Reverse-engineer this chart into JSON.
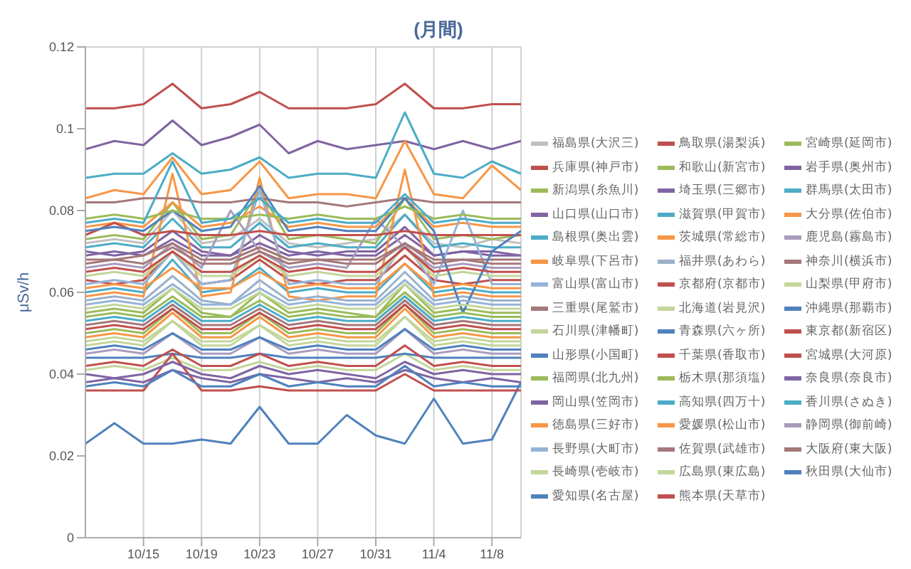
{
  "chart_data": {
    "type": "line",
    "title": "(月間)",
    "ylabel": "μSv/h",
    "x": [
      "--10-11",
      "--10-13",
      "--10-15",
      "--10-17",
      "--10-19",
      "--10-21",
      "--10-23",
      "--10-25",
      "--10-27",
      "--10-29",
      "--10-31",
      "--11-02",
      "--11-04",
      "--11-06",
      "--11-08",
      "--11-10"
    ],
    "xlim": [
      "--10-11",
      "--11-10"
    ],
    "xticks": [
      {
        "value": "--10-15",
        "label": "10/15"
      },
      {
        "value": "--10-19",
        "label": "10/19"
      },
      {
        "value": "--10-23",
        "label": "10/23"
      },
      {
        "value": "--10-27",
        "label": "10/27"
      },
      {
        "value": "--10-31",
        "label": "10/31"
      },
      {
        "value": "--11-04",
        "label": "11/4"
      },
      {
        "value": "--11-08",
        "label": "11/8"
      }
    ],
    "ylim": [
      0,
      0.12
    ],
    "yticks": [
      0,
      0.02,
      0.04,
      0.06,
      0.08,
      0.1,
      0.12
    ],
    "grid": true,
    "legend": "right",
    "series": [
      {
        "name": "福島県(大沢三)",
        "color": "#c0c0c0",
        "values": [
          0.072,
          0.073,
          0.072,
          0.08,
          0.072,
          0.073,
          0.078,
          0.072,
          0.071,
          0.072,
          0.073,
          0.079,
          0.072,
          0.071,
          0.073,
          0.072
        ]
      },
      {
        "name": "鳥取県(湯梨浜)",
        "color": "#c0504d",
        "values": [
          0.063,
          0.062,
          0.063,
          0.07,
          0.062,
          0.063,
          0.068,
          0.063,
          0.062,
          0.063,
          0.063,
          0.069,
          0.063,
          0.062,
          0.063,
          0.063
        ]
      },
      {
        "name": "宮崎県(延岡市)",
        "color": "#9bbb59",
        "values": [
          0.055,
          0.056,
          0.055,
          0.061,
          0.055,
          0.054,
          0.06,
          0.055,
          0.056,
          0.055,
          0.054,
          0.062,
          0.055,
          0.056,
          0.055,
          0.055
        ]
      },
      {
        "name": "兵庫県(神戸市)",
        "color": "#c0504d",
        "values": [
          0.105,
          0.105,
          0.106,
          0.111,
          0.105,
          0.106,
          0.109,
          0.105,
          0.105,
          0.105,
          0.106,
          0.111,
          0.105,
          0.105,
          0.106,
          0.106
        ]
      },
      {
        "name": "和歌山(新宮市)",
        "color": "#9bbb59",
        "values": [
          0.05,
          0.051,
          0.05,
          0.056,
          0.05,
          0.05,
          0.055,
          0.05,
          0.051,
          0.05,
          0.05,
          0.057,
          0.05,
          0.051,
          0.05,
          0.05
        ]
      },
      {
        "name": "岩手県(奥州市)",
        "color": "#8064a2",
        "values": [
          0.095,
          0.097,
          0.096,
          0.102,
          0.096,
          0.098,
          0.101,
          0.094,
          0.097,
          0.095,
          0.096,
          0.097,
          0.095,
          0.097,
          0.095,
          0.097
        ]
      },
      {
        "name": "新潟県(糸魚川)",
        "color": "#9bbb59",
        "values": [
          0.073,
          0.074,
          0.073,
          0.082,
          0.073,
          0.074,
          0.085,
          0.073,
          0.074,
          0.073,
          0.072,
          0.083,
          0.073,
          0.074,
          0.073,
          0.074
        ]
      },
      {
        "name": "埼玉県(三郷市)",
        "color": "#8064a2",
        "values": [
          0.07,
          0.069,
          0.07,
          0.075,
          0.07,
          0.069,
          0.074,
          0.07,
          0.069,
          0.07,
          0.07,
          0.076,
          0.069,
          0.07,
          0.07,
          0.069
        ]
      },
      {
        "name": "群馬県(太田市)",
        "color": "#4bacc6",
        "values": [
          0.088,
          0.089,
          0.089,
          0.094,
          0.089,
          0.09,
          0.093,
          0.088,
          0.089,
          0.089,
          0.088,
          0.104,
          0.089,
          0.088,
          0.092,
          0.089
        ]
      },
      {
        "name": "山口県(山口市)",
        "color": "#8064a2",
        "values": [
          0.069,
          0.07,
          0.069,
          0.073,
          0.069,
          0.069,
          0.072,
          0.069,
          0.07,
          0.069,
          0.069,
          0.074,
          0.069,
          0.07,
          0.069,
          0.069
        ]
      },
      {
        "name": "滋賀県(甲賀市)",
        "color": "#4bacc6",
        "values": [
          0.071,
          0.072,
          0.071,
          0.078,
          0.071,
          0.071,
          0.077,
          0.071,
          0.072,
          0.071,
          0.071,
          0.079,
          0.071,
          0.072,
          0.071,
          0.071
        ]
      },
      {
        "name": "大分県(佐伯市)",
        "color": "#f79646",
        "values": [
          0.083,
          0.085,
          0.084,
          0.093,
          0.084,
          0.085,
          0.092,
          0.083,
          0.084,
          0.084,
          0.083,
          0.097,
          0.084,
          0.083,
          0.091,
          0.085
        ]
      },
      {
        "name": "島根県(奥出雲)",
        "color": "#4bacc6",
        "values": [
          0.06,
          0.061,
          0.06,
          0.068,
          0.06,
          0.061,
          0.066,
          0.06,
          0.061,
          0.06,
          0.06,
          0.067,
          0.06,
          0.061,
          0.06,
          0.06
        ]
      },
      {
        "name": "茨城県(常総市)",
        "color": "#f79646",
        "values": [
          0.059,
          0.06,
          0.059,
          0.089,
          0.059,
          0.06,
          0.088,
          0.059,
          0.058,
          0.059,
          0.059,
          0.09,
          0.059,
          0.06,
          0.059,
          0.059
        ]
      },
      {
        "name": "鹿児島(霧島市)",
        "color": "#a99bbd",
        "values": [
          0.066,
          0.067,
          0.066,
          0.072,
          0.066,
          0.08,
          0.07,
          0.066,
          0.067,
          0.066,
          0.078,
          0.071,
          0.066,
          0.067,
          0.066,
          0.066
        ]
      },
      {
        "name": "岐阜県(下呂市)",
        "color": "#f79646",
        "values": [
          0.076,
          0.077,
          0.076,
          0.082,
          0.076,
          0.077,
          0.081,
          0.076,
          0.077,
          0.076,
          0.076,
          0.083,
          0.076,
          0.077,
          0.076,
          0.076
        ]
      },
      {
        "name": "福井県(あわら)",
        "color": "#9bb1cc",
        "values": [
          0.058,
          0.059,
          0.058,
          0.064,
          0.058,
          0.057,
          0.063,
          0.058,
          0.059,
          0.058,
          0.058,
          0.065,
          0.058,
          0.059,
          0.058,
          0.058
        ]
      },
      {
        "name": "神奈川(横浜市)",
        "color": "#a5787a",
        "values": [
          0.082,
          0.082,
          0.083,
          0.083,
          0.082,
          0.082,
          0.083,
          0.082,
          0.082,
          0.081,
          0.082,
          0.083,
          0.082,
          0.082,
          0.082,
          0.082
        ]
      },
      {
        "name": "富山県(富山市)",
        "color": "#95b3d7",
        "values": [
          0.062,
          0.063,
          0.062,
          0.07,
          0.062,
          0.063,
          0.085,
          0.062,
          0.063,
          0.062,
          0.062,
          0.072,
          0.062,
          0.08,
          0.062,
          0.062
        ]
      },
      {
        "name": "京都府(京都市)",
        "color": "#c0504d",
        "values": [
          0.074,
          0.077,
          0.074,
          0.075,
          0.074,
          0.074,
          0.075,
          0.074,
          0.074,
          0.074,
          0.074,
          0.075,
          0.074,
          0.074,
          0.074,
          0.074
        ]
      },
      {
        "name": "山梨県(甲府市)",
        "color": "#c3d69b",
        "values": [
          0.047,
          0.048,
          0.047,
          0.053,
          0.047,
          0.047,
          0.052,
          0.047,
          0.048,
          0.047,
          0.047,
          0.054,
          0.047,
          0.048,
          0.047,
          0.047
        ]
      },
      {
        "name": "三重県(尾鷲市)",
        "color": "#a5787a",
        "values": [
          0.068,
          0.068,
          0.069,
          0.072,
          0.068,
          0.068,
          0.071,
          0.068,
          0.068,
          0.068,
          0.068,
          0.072,
          0.068,
          0.068,
          0.068,
          0.068
        ]
      },
      {
        "name": "北海道(岩見沢)",
        "color": "#c3d69b",
        "values": [
          0.041,
          0.042,
          0.041,
          0.044,
          0.041,
          0.041,
          0.043,
          0.041,
          0.042,
          0.041,
          0.041,
          0.045,
          0.041,
          0.042,
          0.041,
          0.041
        ]
      },
      {
        "name": "沖縄県(那覇市)",
        "color": "#4f81bd",
        "values": [
          0.023,
          0.028,
          0.023,
          0.023,
          0.024,
          0.023,
          0.032,
          0.023,
          0.023,
          0.03,
          0.025,
          0.023,
          0.034,
          0.023,
          0.024,
          0.038
        ]
      },
      {
        "name": "石川県(津幡町)",
        "color": "#c3d69b",
        "values": [
          0.064,
          0.065,
          0.064,
          0.07,
          0.064,
          0.064,
          0.069,
          0.064,
          0.065,
          0.064,
          0.064,
          0.071,
          0.064,
          0.065,
          0.064,
          0.064
        ]
      },
      {
        "name": "青森県(六ヶ所)",
        "color": "#4f81bd",
        "values": [
          0.044,
          0.044,
          0.044,
          0.045,
          0.044,
          0.044,
          0.045,
          0.044,
          0.044,
          0.044,
          0.044,
          0.045,
          0.044,
          0.044,
          0.044,
          0.044
        ]
      },
      {
        "name": "東京都(新宿区)",
        "color": "#c0504d",
        "values": [
          0.036,
          0.036,
          0.036,
          0.045,
          0.036,
          0.036,
          0.037,
          0.036,
          0.036,
          0.036,
          0.036,
          0.04,
          0.036,
          0.036,
          0.036,
          0.036
        ]
      },
      {
        "name": "山形県(小国町)",
        "color": "#4f81bd",
        "values": [
          0.075,
          0.076,
          0.075,
          0.08,
          0.075,
          0.076,
          0.086,
          0.075,
          0.076,
          0.075,
          0.075,
          0.083,
          0.075,
          0.055,
          0.07,
          0.075
        ]
      },
      {
        "name": "千葉県(香取市)",
        "color": "#c0504d",
        "values": [
          0.051,
          0.052,
          0.051,
          0.056,
          0.051,
          0.051,
          0.055,
          0.051,
          0.052,
          0.051,
          0.051,
          0.057,
          0.051,
          0.052,
          0.051,
          0.051
        ]
      },
      {
        "name": "宮城県(大河原)",
        "color": "#c0504d",
        "values": [
          0.065,
          0.066,
          0.065,
          0.07,
          0.065,
          0.065,
          0.069,
          0.065,
          0.066,
          0.065,
          0.065,
          0.071,
          0.065,
          0.066,
          0.065,
          0.065
        ]
      },
      {
        "name": "福岡県(北九州)",
        "color": "#9bbb59",
        "values": [
          0.054,
          0.055,
          0.054,
          0.059,
          0.054,
          0.054,
          0.058,
          0.054,
          0.055,
          0.054,
          0.054,
          0.06,
          0.054,
          0.055,
          0.054,
          0.054
        ]
      },
      {
        "name": "栃木県(那須塩)",
        "color": "#9bbb59",
        "values": [
          0.078,
          0.079,
          0.078,
          0.08,
          0.078,
          0.078,
          0.079,
          0.078,
          0.079,
          0.078,
          0.078,
          0.081,
          0.078,
          0.079,
          0.078,
          0.078
        ]
      },
      {
        "name": "奈良県(奈良市)",
        "color": "#8064a2",
        "values": [
          0.04,
          0.039,
          0.04,
          0.043,
          0.04,
          0.039,
          0.042,
          0.04,
          0.041,
          0.04,
          0.039,
          0.043,
          0.04,
          0.041,
          0.04,
          0.04
        ]
      },
      {
        "name": "岡山県(笠岡市)",
        "color": "#8064a2",
        "values": [
          0.038,
          0.039,
          0.038,
          0.041,
          0.039,
          0.038,
          0.04,
          0.039,
          0.038,
          0.039,
          0.038,
          0.041,
          0.039,
          0.038,
          0.039,
          0.038
        ]
      },
      {
        "name": "高知県(四万十)",
        "color": "#4bacc6",
        "values": [
          0.077,
          0.078,
          0.077,
          0.092,
          0.077,
          0.078,
          0.083,
          0.077,
          0.078,
          0.077,
          0.077,
          0.084,
          0.077,
          0.078,
          0.077,
          0.077
        ]
      },
      {
        "name": "香川県(さぬき)",
        "color": "#4bacc6",
        "values": [
          0.053,
          0.054,
          0.053,
          0.058,
          0.053,
          0.053,
          0.057,
          0.053,
          0.054,
          0.053,
          0.053,
          0.059,
          0.053,
          0.054,
          0.053,
          0.053
        ]
      },
      {
        "name": "徳島県(三好市)",
        "color": "#f79646",
        "values": [
          0.061,
          0.062,
          0.061,
          0.066,
          0.061,
          0.061,
          0.065,
          0.061,
          0.062,
          0.061,
          0.061,
          0.067,
          0.061,
          0.062,
          0.061,
          0.061
        ]
      },
      {
        "name": "愛媛県(松山市)",
        "color": "#f79646",
        "values": [
          0.049,
          0.05,
          0.049,
          0.055,
          0.049,
          0.049,
          0.054,
          0.049,
          0.05,
          0.049,
          0.049,
          0.056,
          0.049,
          0.05,
          0.049,
          0.049
        ]
      },
      {
        "name": "静岡県(御前崎)",
        "color": "#a99bbd",
        "values": [
          0.045,
          0.046,
          0.045,
          0.05,
          0.045,
          0.045,
          0.049,
          0.045,
          0.046,
          0.045,
          0.045,
          0.051,
          0.045,
          0.046,
          0.045,
          0.045
        ]
      },
      {
        "name": "長野県(大町市)",
        "color": "#95b3d7",
        "values": [
          0.057,
          0.058,
          0.057,
          0.062,
          0.057,
          0.057,
          0.061,
          0.057,
          0.058,
          0.057,
          0.057,
          0.063,
          0.057,
          0.058,
          0.057,
          0.057
        ]
      },
      {
        "name": "佐賀県(武雄市)",
        "color": "#a5787a",
        "values": [
          0.052,
          0.053,
          0.052,
          0.057,
          0.052,
          0.052,
          0.056,
          0.052,
          0.053,
          0.052,
          0.052,
          0.058,
          0.052,
          0.053,
          0.052,
          0.052
        ]
      },
      {
        "name": "大阪府(東大阪)",
        "color": "#a5787a",
        "values": [
          0.067,
          0.068,
          0.067,
          0.071,
          0.067,
          0.067,
          0.07,
          0.067,
          0.068,
          0.067,
          0.067,
          0.072,
          0.067,
          0.068,
          0.067,
          0.067
        ]
      },
      {
        "name": "長崎県(壱岐市)",
        "color": "#c3d69b",
        "values": [
          0.056,
          0.057,
          0.056,
          0.061,
          0.056,
          0.056,
          0.06,
          0.056,
          0.057,
          0.056,
          0.056,
          0.062,
          0.056,
          0.057,
          0.056,
          0.056
        ]
      },
      {
        "name": "広島県(東広島)",
        "color": "#c3d69b",
        "values": [
          0.048,
          0.049,
          0.048,
          0.053,
          0.048,
          0.048,
          0.052,
          0.048,
          0.049,
          0.048,
          0.048,
          0.054,
          0.048,
          0.049,
          0.048,
          0.048
        ]
      },
      {
        "name": "秋田県(大仙市)",
        "color": "#4f81bd",
        "values": [
          0.037,
          0.038,
          0.037,
          0.041,
          0.037,
          0.037,
          0.04,
          0.037,
          0.038,
          0.037,
          0.037,
          0.042,
          0.037,
          0.038,
          0.037,
          0.037
        ]
      },
      {
        "name": "愛知県(名古屋)",
        "color": "#4f81bd",
        "values": [
          0.046,
          0.047,
          0.046,
          0.05,
          0.046,
          0.046,
          0.049,
          0.046,
          0.047,
          0.046,
          0.046,
          0.051,
          0.046,
          0.047,
          0.046,
          0.046
        ]
      },
      {
        "name": "熊本県(天草市)",
        "color": "#c0504d",
        "values": [
          0.042,
          0.043,
          0.042,
          0.046,
          0.042,
          0.042,
          0.045,
          0.042,
          0.043,
          0.042,
          0.042,
          0.047,
          0.042,
          0.043,
          0.042,
          0.042
        ]
      }
    ]
  }
}
